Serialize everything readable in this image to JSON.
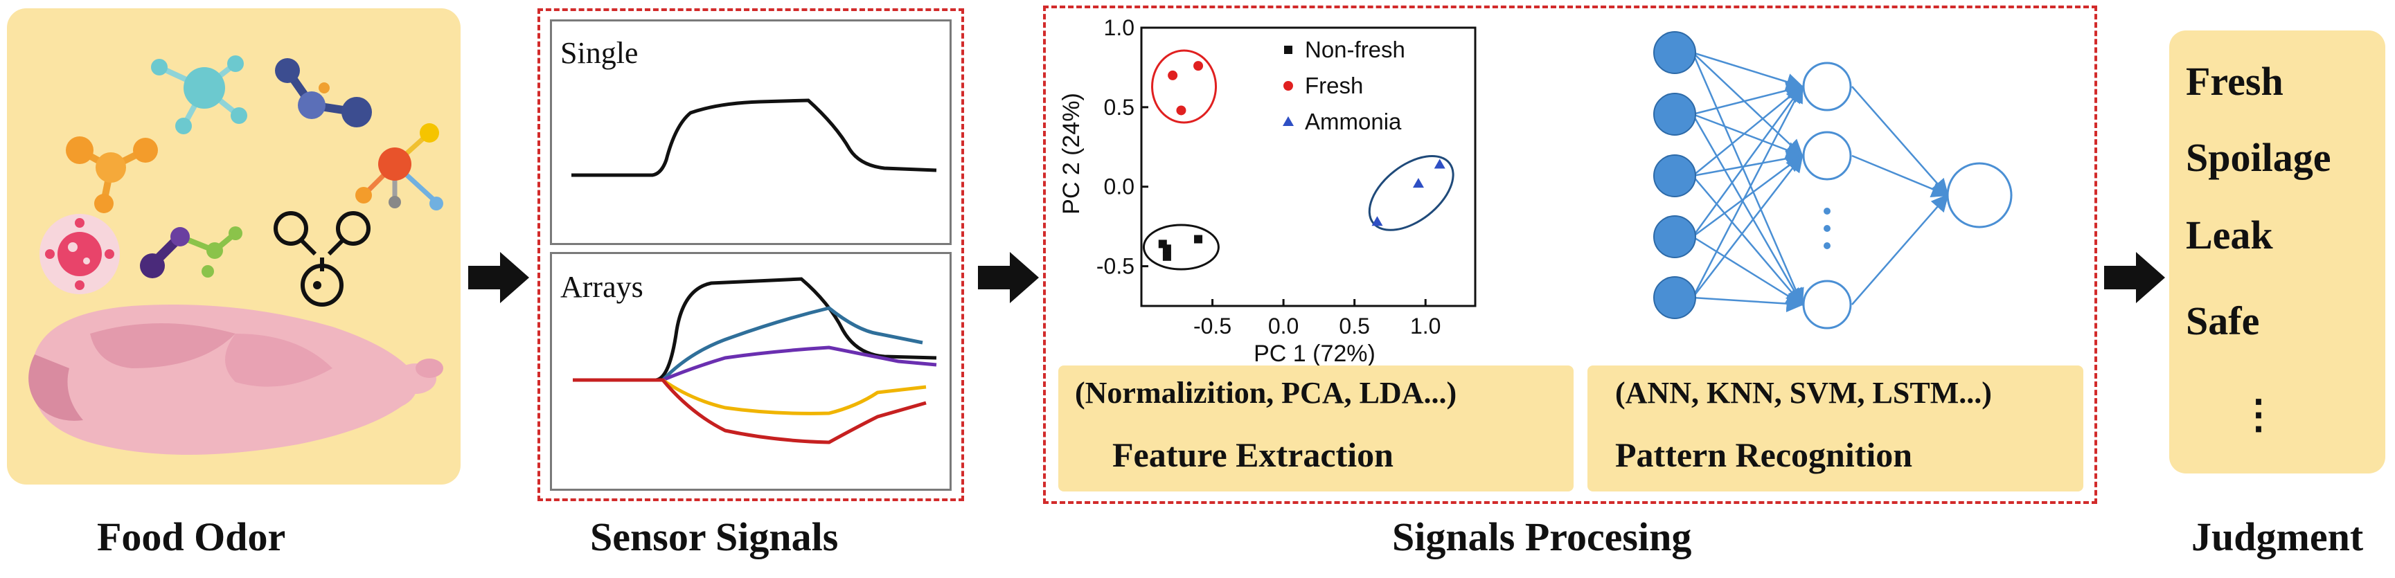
{
  "captions": {
    "food_odor": "Food  Odor",
    "sensor_signals": "Sensor Signals",
    "signals_processing": "Signals Procesing",
    "judgment": "Judgment"
  },
  "sensor": {
    "single_label": "Single",
    "arrays_label": "Arrays"
  },
  "pca_chart": {
    "ylabel": "PC 2 (24%)",
    "xlabel": "PC 1 (72%)",
    "x_ticks": [
      "-0.5",
      "0.0",
      "0.5",
      "1.0"
    ],
    "y_ticks": [
      "1.0",
      "0.5",
      "0.0",
      "-0.5"
    ],
    "legend": [
      "Non-fresh",
      "Fresh",
      "Ammonia"
    ]
  },
  "chart_data": {
    "type": "scatter",
    "title": "",
    "xlabel": "PC 1 (72%)",
    "ylabel": "PC 2 (24%)",
    "xlim": [
      -1.0,
      1.35
    ],
    "ylim": [
      -0.75,
      1.0
    ],
    "series": [
      {
        "name": "Non-fresh",
        "marker": "square",
        "color": "#111111",
        "x": [
          -0.85,
          -0.82,
          -0.82,
          -0.6
        ],
        "y": [
          -0.36,
          -0.39,
          -0.44,
          -0.33
        ]
      },
      {
        "name": "Fresh",
        "marker": "circle",
        "color": "#e02020",
        "x": [
          -0.78,
          -0.6,
          -0.72
        ],
        "y": [
          0.7,
          0.76,
          0.48
        ]
      },
      {
        "name": "Ammonia",
        "marker": "triangle",
        "color": "#2e4fc4",
        "x": [
          0.66,
          0.95,
          1.1
        ],
        "y": [
          -0.22,
          0.02,
          0.14
        ]
      }
    ]
  },
  "feature": {
    "methods": "(Normalizition, PCA,  LDA...)",
    "title": "Feature Extraction"
  },
  "pattern": {
    "methods": "(ANN,  KNN, SVM, LSTM...)",
    "title": "Pattern Recognition"
  },
  "judgment": {
    "items": [
      "Fresh",
      "Spoilage",
      "Leak",
      "Safe",
      "⋮"
    ]
  },
  "colors": {
    "accent_red": "#d22b2b",
    "panel_yellow": "#fbe4a3",
    "node_blue": "#4a8fd4"
  }
}
